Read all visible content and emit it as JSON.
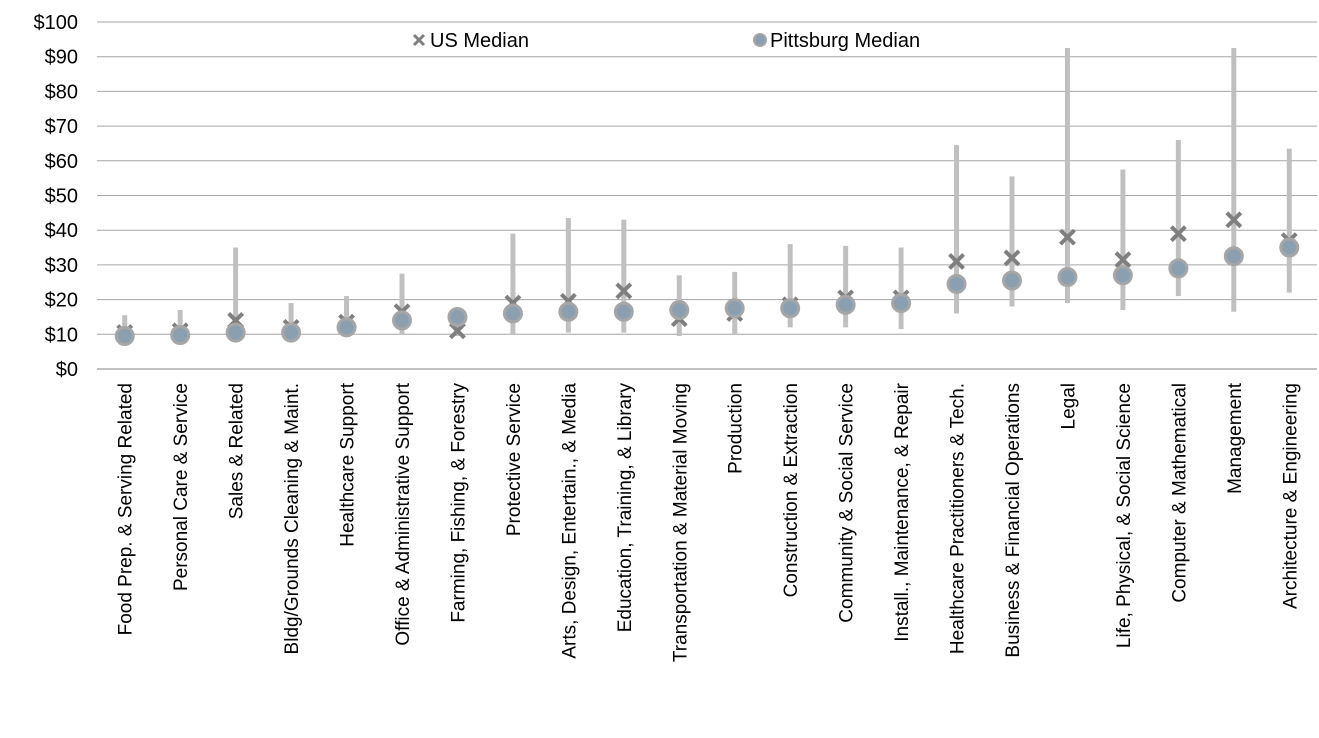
{
  "chart_data": {
    "type": "scatter",
    "title": "",
    "xlabel": "",
    "ylabel": "",
    "ylim": [
      0,
      100
    ],
    "y_ticks": [
      "$0",
      "$10",
      "$20",
      "$30",
      "$40",
      "$50",
      "$60",
      "$70",
      "$80",
      "$90",
      "$100"
    ],
    "grid": true,
    "legend_position": "top",
    "categories": [
      "Food Prep. & Serving Related",
      "Personal Care & Service",
      "Sales & Related",
      "Bldg/Grounds Cleaning & Maint.",
      "Healthcare Support",
      "Office & Administrative Support",
      "Farming, Fishing, & Forestry",
      "Protective Service",
      "Arts, Design, Entertain., & Media",
      "Education, Training, & Library",
      "Transportation & Material Moving",
      "Production",
      "Construction & Extraction",
      "Community & Social Service",
      "Install., Maintenance, & Repair",
      "Healthcare Practitioners & Tech.",
      "Business & Financial Operations",
      "Legal",
      "Life, Physical, & Social Science",
      "Computer & Mathematical",
      "Management",
      "Architecture & Engineering"
    ],
    "range": {
      "low": [
        8.5,
        8.5,
        9,
        9,
        10,
        10,
        9.5,
        10,
        10.5,
        10.5,
        9.5,
        10,
        12,
        12,
        11.5,
        16,
        18,
        19,
        17,
        21,
        16.5,
        22
      ],
      "high": [
        15.5,
        17,
        35,
        19,
        21,
        27.5,
        15,
        39,
        43.5,
        43,
        27,
        28,
        36,
        35.5,
        35,
        64.5,
        55.5,
        92.5,
        57.5,
        66,
        92.5,
        63.5
      ]
    },
    "series": [
      {
        "name": "US Median",
        "marker": "x",
        "color": "#7f7f7f",
        "values": [
          10.5,
          11,
          14,
          12,
          13.5,
          16.5,
          11,
          19,
          19.5,
          22.5,
          14.5,
          16,
          18.5,
          20.5,
          20.5,
          31,
          32,
          38,
          31.5,
          39,
          43,
          37
        ]
      },
      {
        "name": "Pittsburg Median",
        "marker": "circle",
        "color": "#8aa0b0",
        "values": [
          9.5,
          9.8,
          10.5,
          10.5,
          12,
          14,
          15,
          16,
          16.5,
          16.5,
          17,
          17.5,
          17.5,
          18.5,
          19,
          24.5,
          25.5,
          26.5,
          27,
          29,
          32.5,
          35
        ]
      }
    ],
    "colors": {
      "range_bar": "#c0c0c0",
      "gridline": "#a6a6a6",
      "axis": "#808080",
      "us_marker": "#7f7f7f",
      "pitts_fill": "#8aa0b0",
      "pitts_stroke": "#a6a6a6"
    }
  }
}
